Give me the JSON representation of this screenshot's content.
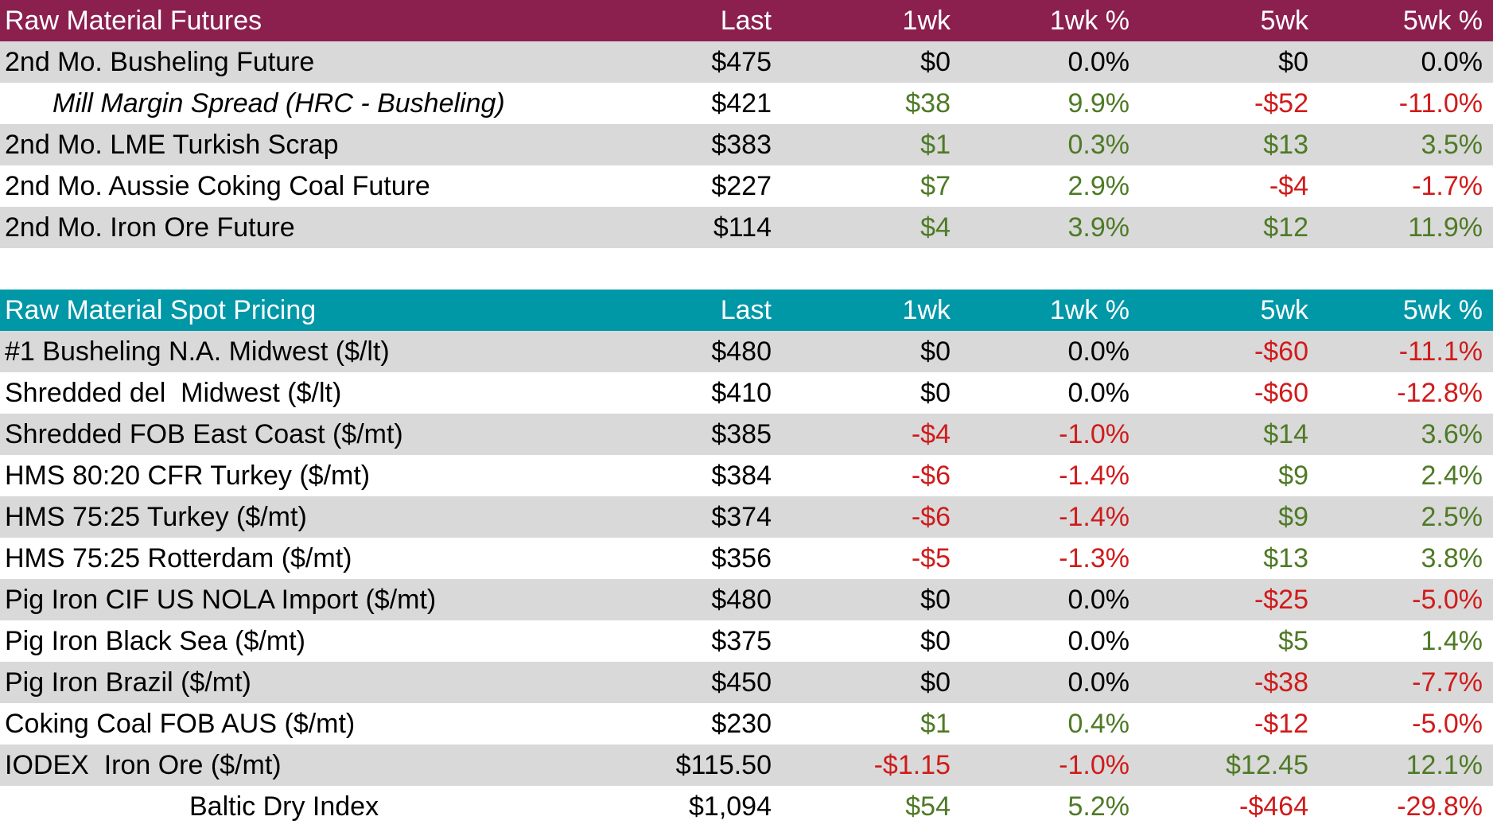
{
  "colors": {
    "futures_header": "#8b204f",
    "spot_header": "#0097a7",
    "positive": "#4e7a26",
    "negative": "#d01b1b",
    "shaded_row": "#d9d9d9"
  },
  "futures": {
    "header": {
      "title": "Raw Material Futures",
      "last": "Last",
      "wk1": "1wk",
      "wk1_pct": "1wk %",
      "wk5": "5wk",
      "wk5_pct": "5wk %"
    },
    "rows": [
      {
        "name": "2nd Mo. Busheling Future",
        "last": "$475",
        "wk1": "$0",
        "wk1_pct": "0.0%",
        "wk5": "$0",
        "wk5_pct": "0.0%"
      },
      {
        "name": "Mill Margin Spread (HRC - Busheling)",
        "last": "$421",
        "wk1": "$38",
        "wk1_pct": "9.9%",
        "wk5": "-$52",
        "wk5_pct": "-11.0%"
      },
      {
        "name": "2nd Mo. LME Turkish Scrap",
        "last": "$383",
        "wk1": "$1",
        "wk1_pct": "0.3%",
        "wk5": "$13",
        "wk5_pct": "3.5%"
      },
      {
        "name": "2nd Mo. Aussie Coking Coal Future",
        "last": "$227",
        "wk1": "$7",
        "wk1_pct": "2.9%",
        "wk5": "-$4",
        "wk5_pct": "-1.7%"
      },
      {
        "name": "2nd Mo. Iron Ore Future",
        "last": "$114",
        "wk1": "$4",
        "wk1_pct": "3.9%",
        "wk5": "$12",
        "wk5_pct": "11.9%"
      }
    ]
  },
  "spot": {
    "header": {
      "title": "Raw Material Spot Pricing",
      "last": "Last",
      "wk1": "1wk",
      "wk1_pct": "1wk %",
      "wk5": "5wk",
      "wk5_pct": "5wk %"
    },
    "rows": [
      {
        "name": "#1 Busheling N.A. Midwest ($/lt)",
        "last": "$480",
        "wk1": "$0",
        "wk1_pct": "0.0%",
        "wk5": "-$60",
        "wk5_pct": "-11.1%"
      },
      {
        "name": "Shredded del  Midwest ($/lt)",
        "last": "$410",
        "wk1": "$0",
        "wk1_pct": "0.0%",
        "wk5": "-$60",
        "wk5_pct": "-12.8%"
      },
      {
        "name": "Shredded FOB East Coast ($/mt)",
        "last": "$385",
        "wk1": "-$4",
        "wk1_pct": "-1.0%",
        "wk5": "$14",
        "wk5_pct": "3.6%"
      },
      {
        "name": "HMS 80:20 CFR Turkey ($/mt)",
        "last": "$384",
        "wk1": "-$6",
        "wk1_pct": "-1.4%",
        "wk5": "$9",
        "wk5_pct": "2.4%"
      },
      {
        "name": "HMS 75:25 Turkey ($/mt)",
        "last": "$374",
        "wk1": "-$6",
        "wk1_pct": "-1.4%",
        "wk5": "$9",
        "wk5_pct": "2.5%"
      },
      {
        "name": "HMS 75:25 Rotterdam ($/mt)",
        "last": "$356",
        "wk1": "-$5",
        "wk1_pct": "-1.3%",
        "wk5": "$13",
        "wk5_pct": "3.8%"
      },
      {
        "name": "Pig Iron CIF US NOLA Import ($/mt)",
        "last": "$480",
        "wk1": "$0",
        "wk1_pct": "0.0%",
        "wk5": "-$25",
        "wk5_pct": "-5.0%"
      },
      {
        "name": "Pig Iron Black Sea ($/mt)",
        "last": "$375",
        "wk1": "$0",
        "wk1_pct": "0.0%",
        "wk5": "$5",
        "wk5_pct": "1.4%"
      },
      {
        "name": "Pig Iron Brazil ($/mt)",
        "last": "$450",
        "wk1": "$0",
        "wk1_pct": "0.0%",
        "wk5": "-$38",
        "wk5_pct": "-7.7%"
      },
      {
        "name": "Coking Coal FOB AUS ($/mt)",
        "last": "$230",
        "wk1": "$1",
        "wk1_pct": "0.4%",
        "wk5": "-$12",
        "wk5_pct": "-5.0%"
      },
      {
        "name": "IODEX  Iron Ore ($/mt)",
        "last": "$115.50",
        "wk1": "-$1.15",
        "wk1_pct": "-1.0%",
        "wk5": "$12.45",
        "wk5_pct": "12.1%"
      },
      {
        "name": "Baltic Dry Index",
        "last": "$1,094",
        "wk1": "$54",
        "wk1_pct": "5.2%",
        "wk5": "-$464",
        "wk5_pct": "-29.8%"
      }
    ]
  }
}
